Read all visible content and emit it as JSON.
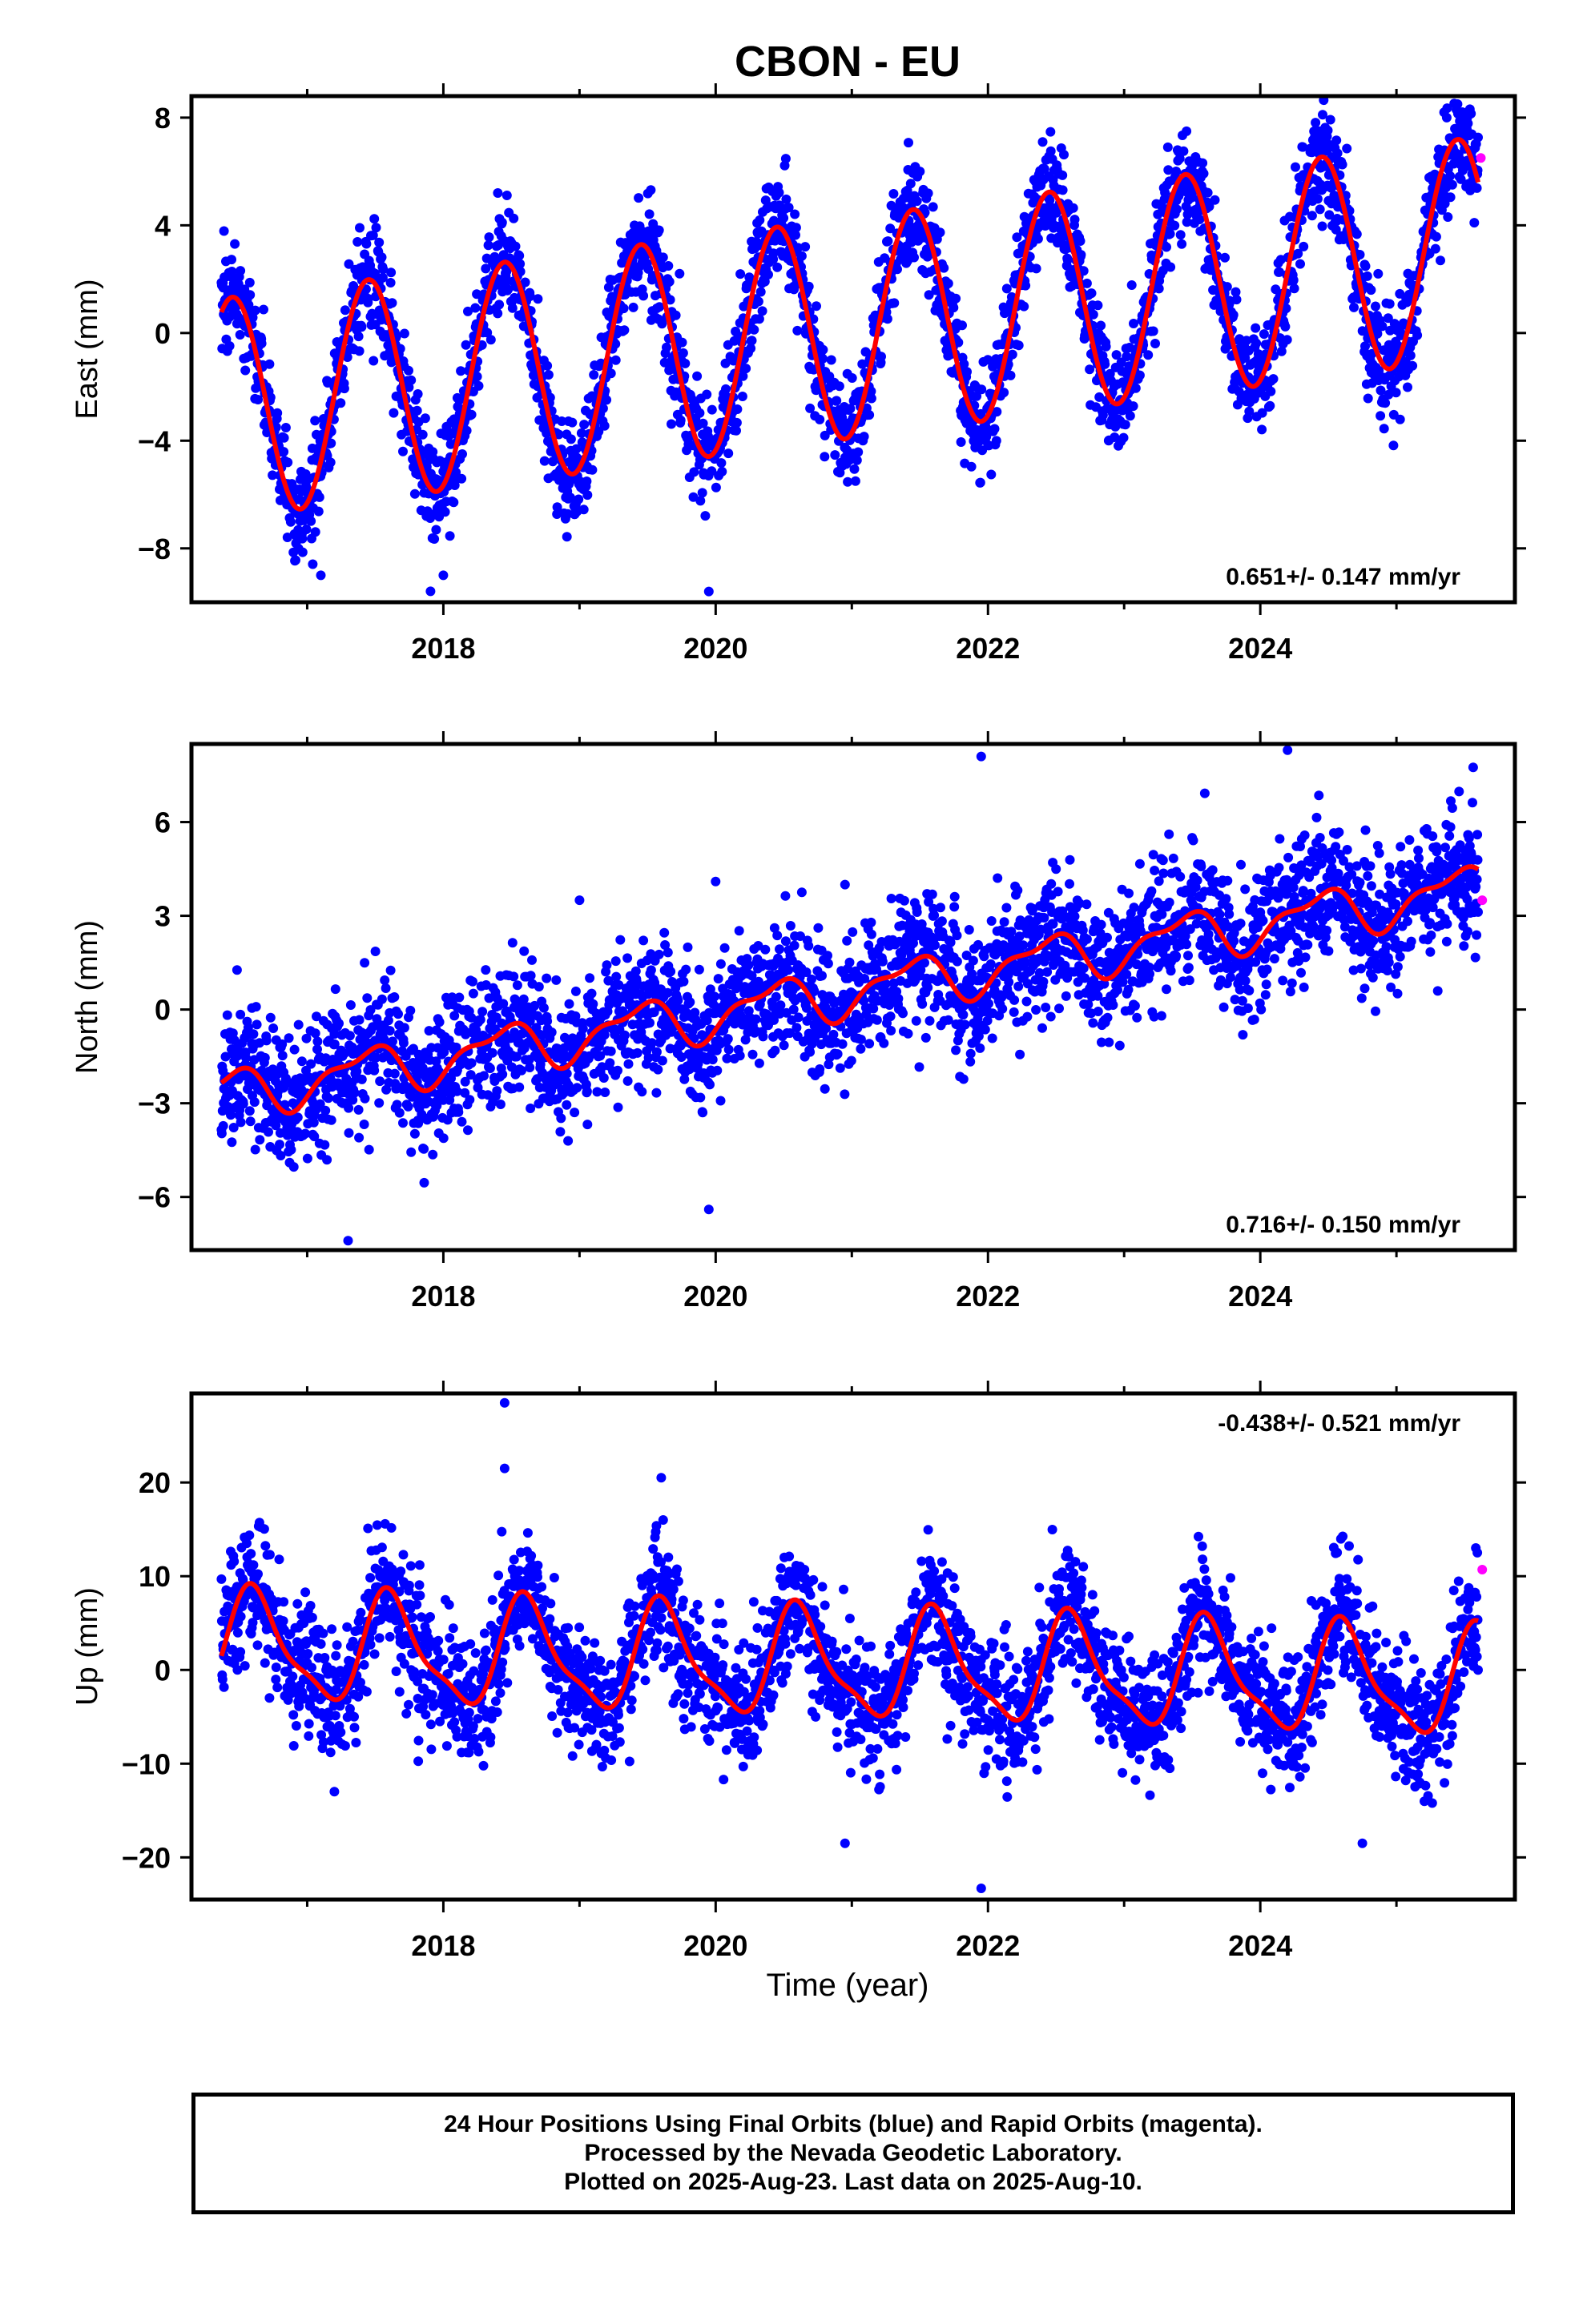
{
  "title": "CBON - EU",
  "xlabel": "Time (year)",
  "colors": {
    "final": "#0000ff",
    "rapid": "#ff00ff",
    "fit": "#ff0000"
  },
  "footer": {
    "line1": "24 Hour Positions Using Final Orbits (blue) and Rapid Orbits (magenta).",
    "line2": "Processed by the Nevada Geodetic Laboratory.",
    "line3": "Plotted on 2025-Aug-23. Last data on 2025-Aug-10."
  },
  "chart_data": [
    {
      "type": "scatter",
      "ylabel": "East (mm)",
      "rate_label": "0.651+/- 0.147 mm/yr",
      "rate_position": "bottom-right",
      "xlim": [
        2016.15,
        2025.87
      ],
      "ylim": [
        -10,
        8.8
      ],
      "yticks": [
        -8,
        -4,
        0,
        4,
        8
      ],
      "xticks": [
        2018,
        2020,
        2022,
        2024
      ],
      "grid": false,
      "model": {
        "offset": -2.8,
        "trend_mm_per_yr": 0.651,
        "trend_ref_year": 2016.4,
        "annual_amp": 4.1,
        "annual_peak": 0.45,
        "semiannual_amp": 0,
        "semiannual_peak": 0,
        "scatter_sd": 1.0
      },
      "outliers": [
        [
          2017.1,
          -9.0
        ],
        [
          2018.0,
          -9.0
        ],
        [
          2019.95,
          -9.6
        ],
        [
          2021.5,
          6.0
        ],
        [
          2018.4,
          5.2
        ],
        [
          2025.35,
          8.2
        ]
      ],
      "rapid_points": [
        [
          2025.62,
          6.5
        ]
      ]
    },
    {
      "type": "scatter",
      "ylabel": "North (mm)",
      "rate_label": "0.716+/- 0.150 mm/yr",
      "rate_position": "bottom-right",
      "xlim": [
        2016.15,
        2025.87
      ],
      "ylim": [
        -7.7,
        8.5
      ],
      "yticks": [
        -6,
        -3,
        0,
        3,
        6
      ],
      "xticks": [
        2018,
        2020,
        2022,
        2024
      ],
      "grid": false,
      "model": {
        "offset": -2.7,
        "trend_mm_per_yr": 0.716,
        "trend_ref_year": 2016.4,
        "annual_amp": 0.7,
        "annual_peak": 0.42,
        "semiannual_amp": 0.3,
        "semiannual_peak": 0.1,
        "scatter_sd": 1.05
      },
      "outliers": [
        [
          2017.3,
          -7.4
        ],
        [
          2019.95,
          -6.4
        ],
        [
          2021.95,
          8.1
        ],
        [
          2024.2,
          8.3
        ],
        [
          2019.0,
          3.5
        ],
        [
          2020.0,
          4.1
        ],
        [
          2020.95,
          4.0
        ]
      ],
      "rapid_points": [
        [
          2025.63,
          3.5
        ]
      ]
    },
    {
      "type": "scatter",
      "ylabel": "Up (mm)",
      "rate_label": "-0.438+/- 0.521 mm/yr",
      "rate_position": "top-right",
      "xlim": [
        2016.15,
        2025.87
      ],
      "ylim": [
        -24.5,
        29.5
      ],
      "yticks": [
        -20,
        -10,
        0,
        10,
        20
      ],
      "xticks": [
        2018,
        2020,
        2022,
        2024
      ],
      "grid": false,
      "model": {
        "offset": 2.5,
        "trend_mm_per_yr": -0.438,
        "trend_ref_year": 2016.4,
        "annual_amp": 5.5,
        "annual_peak": 0.62,
        "semiannual_amp": 1.6,
        "semiannual_peak": 0.55,
        "scatter_sd": 3.4
      },
      "outliers": [
        [
          2018.45,
          28.5
        ],
        [
          2018.45,
          21.5
        ],
        [
          2021.95,
          -23.3
        ],
        [
          2020.95,
          -18.5
        ],
        [
          2024.75,
          -18.5
        ],
        [
          2019.6,
          20.5
        ]
      ],
      "rapid_points": [
        [
          2025.63,
          10.7
        ]
      ]
    }
  ]
}
